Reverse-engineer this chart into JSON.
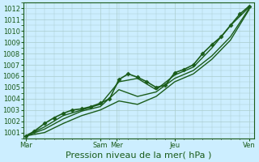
{
  "xlabel": "Pression niveau de la mer( hPa )",
  "bg_color": "#cceeff",
  "grid_color": "#aacccc",
  "line_color": "#1a5c1a",
  "ylim": [
    1000.5,
    1012.5
  ],
  "yticks": [
    1001,
    1002,
    1003,
    1004,
    1005,
    1006,
    1007,
    1008,
    1009,
    1010,
    1011,
    1012
  ],
  "xtick_labels": [
    "Mar",
    "Sam",
    "Mer",
    "Jeu",
    "Ven"
  ],
  "xtick_positions": [
    0,
    56,
    68,
    112,
    168
  ],
  "xlim": [
    -2,
    172
  ],
  "series": [
    {
      "x": [
        0,
        6,
        14,
        21,
        28,
        35,
        42,
        49,
        56,
        63,
        70,
        77,
        84,
        91,
        98,
        105,
        112,
        119,
        126,
        133,
        140,
        147,
        154,
        161,
        168
      ],
      "y": [
        1000.7,
        1001.1,
        1001.8,
        1002.3,
        1002.7,
        1003.0,
        1003.1,
        1003.3,
        1003.6,
        1004.0,
        1005.7,
        1006.2,
        1005.9,
        1005.5,
        1005.0,
        1005.2,
        1006.3,
        1006.6,
        1007.0,
        1008.0,
        1008.8,
        1009.5,
        1010.5,
        1011.5,
        1012.2
      ],
      "marker": "D",
      "markersize": 2.5,
      "linewidth": 1.2
    },
    {
      "x": [
        0,
        14,
        28,
        42,
        56,
        70,
        84,
        98,
        112,
        126,
        140,
        154,
        168
      ],
      "y": [
        1000.7,
        1001.5,
        1002.5,
        1003.0,
        1003.5,
        1005.5,
        1005.8,
        1004.8,
        1006.1,
        1006.8,
        1008.5,
        1010.5,
        1012.1
      ],
      "marker": "None",
      "markersize": 0,
      "linewidth": 1.0
    },
    {
      "x": [
        0,
        14,
        28,
        42,
        56,
        70,
        84,
        98,
        112,
        126,
        140,
        154,
        168
      ],
      "y": [
        1000.7,
        1001.3,
        1002.2,
        1002.9,
        1003.3,
        1004.8,
        1004.2,
        1004.6,
        1005.8,
        1006.5,
        1007.8,
        1009.5,
        1012.0
      ],
      "marker": "None",
      "markersize": 0,
      "linewidth": 1.0
    },
    {
      "x": [
        0,
        14,
        28,
        42,
        56,
        70,
        84,
        98,
        112,
        126,
        140,
        154,
        168
      ],
      "y": [
        1000.7,
        1001.0,
        1001.8,
        1002.5,
        1003.0,
        1003.8,
        1003.5,
        1004.2,
        1005.5,
        1006.2,
        1007.5,
        1009.2,
        1011.9
      ],
      "marker": "None",
      "markersize": 0,
      "linewidth": 1.0
    }
  ],
  "font_color": "#1a5c1a",
  "tick_fontsize": 6,
  "xlabel_fontsize": 8
}
